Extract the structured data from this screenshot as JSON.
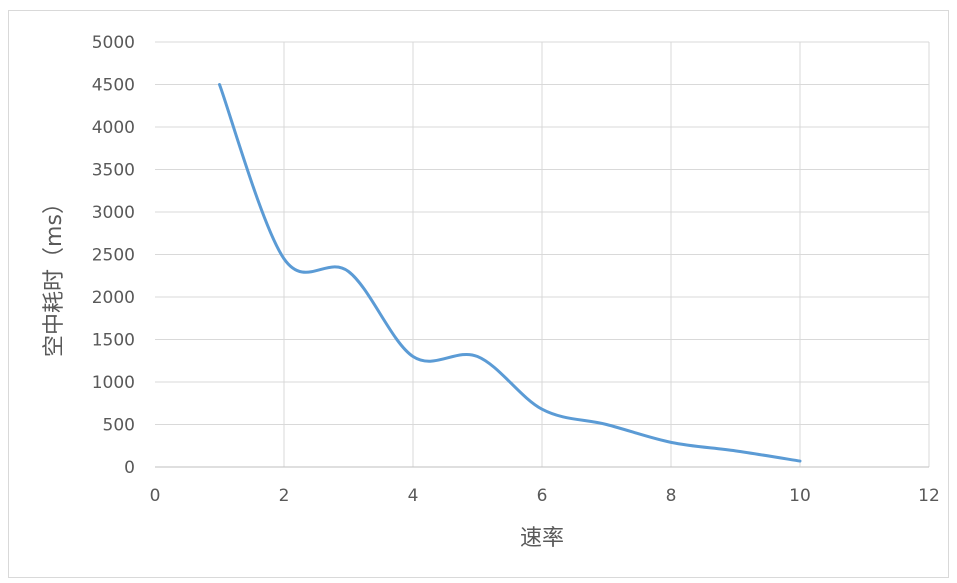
{
  "chart_data": {
    "type": "line",
    "smooth": true,
    "title": "",
    "xlabel": "速率",
    "ylabel": "空中耗时（ms）",
    "xlim": [
      0,
      12
    ],
    "ylim": [
      0,
      5000
    ],
    "xticks": [
      0,
      2,
      4,
      6,
      8,
      10,
      12
    ],
    "yticks": [
      0,
      500,
      1000,
      1500,
      2000,
      2500,
      3000,
      3500,
      4000,
      4500,
      5000
    ],
    "grid": true,
    "legend": "none",
    "series": [
      {
        "color": "#5b9bd5",
        "x": [
          1,
          2,
          3,
          4,
          5,
          6,
          7,
          8,
          9,
          10
        ],
        "y": [
          4500,
          2450,
          2300,
          1300,
          1300,
          680,
          500,
          290,
          190,
          70
        ]
      }
    ]
  }
}
